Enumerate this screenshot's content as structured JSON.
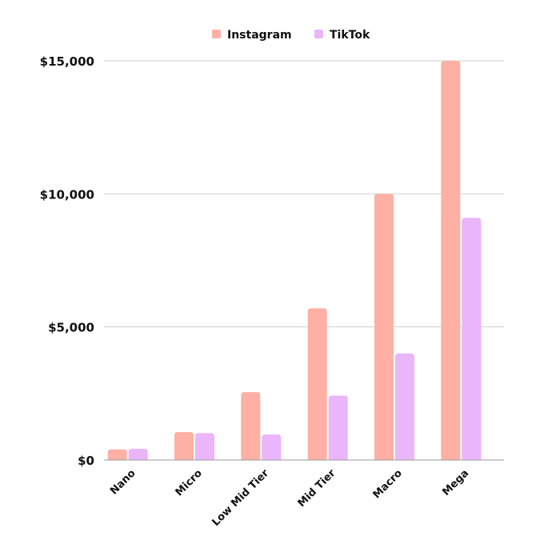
{
  "chart_data": {
    "type": "bar",
    "categories": [
      "Nano",
      "Micro",
      "Low Mid Tier",
      "Mid Tier",
      "Macro",
      "Mega"
    ],
    "series": [
      {
        "name": "Instagram",
        "color": "#ffb0a5",
        "values": [
          400,
          1050,
          2550,
          5700,
          10000,
          15000
        ]
      },
      {
        "name": "TikTok",
        "color": "#ebb5fa",
        "values": [
          420,
          1010,
          960,
          2420,
          4000,
          9100
        ]
      }
    ],
    "ylim": [
      0,
      15000
    ],
    "yticks": [
      0,
      5000,
      10000,
      15000
    ],
    "ytick_labels": [
      "$0",
      "$5,000",
      "$10,000",
      "$15,000"
    ],
    "grid": true,
    "legend_position": "top-center",
    "title": "",
    "xlabel": "",
    "ylabel": ""
  }
}
